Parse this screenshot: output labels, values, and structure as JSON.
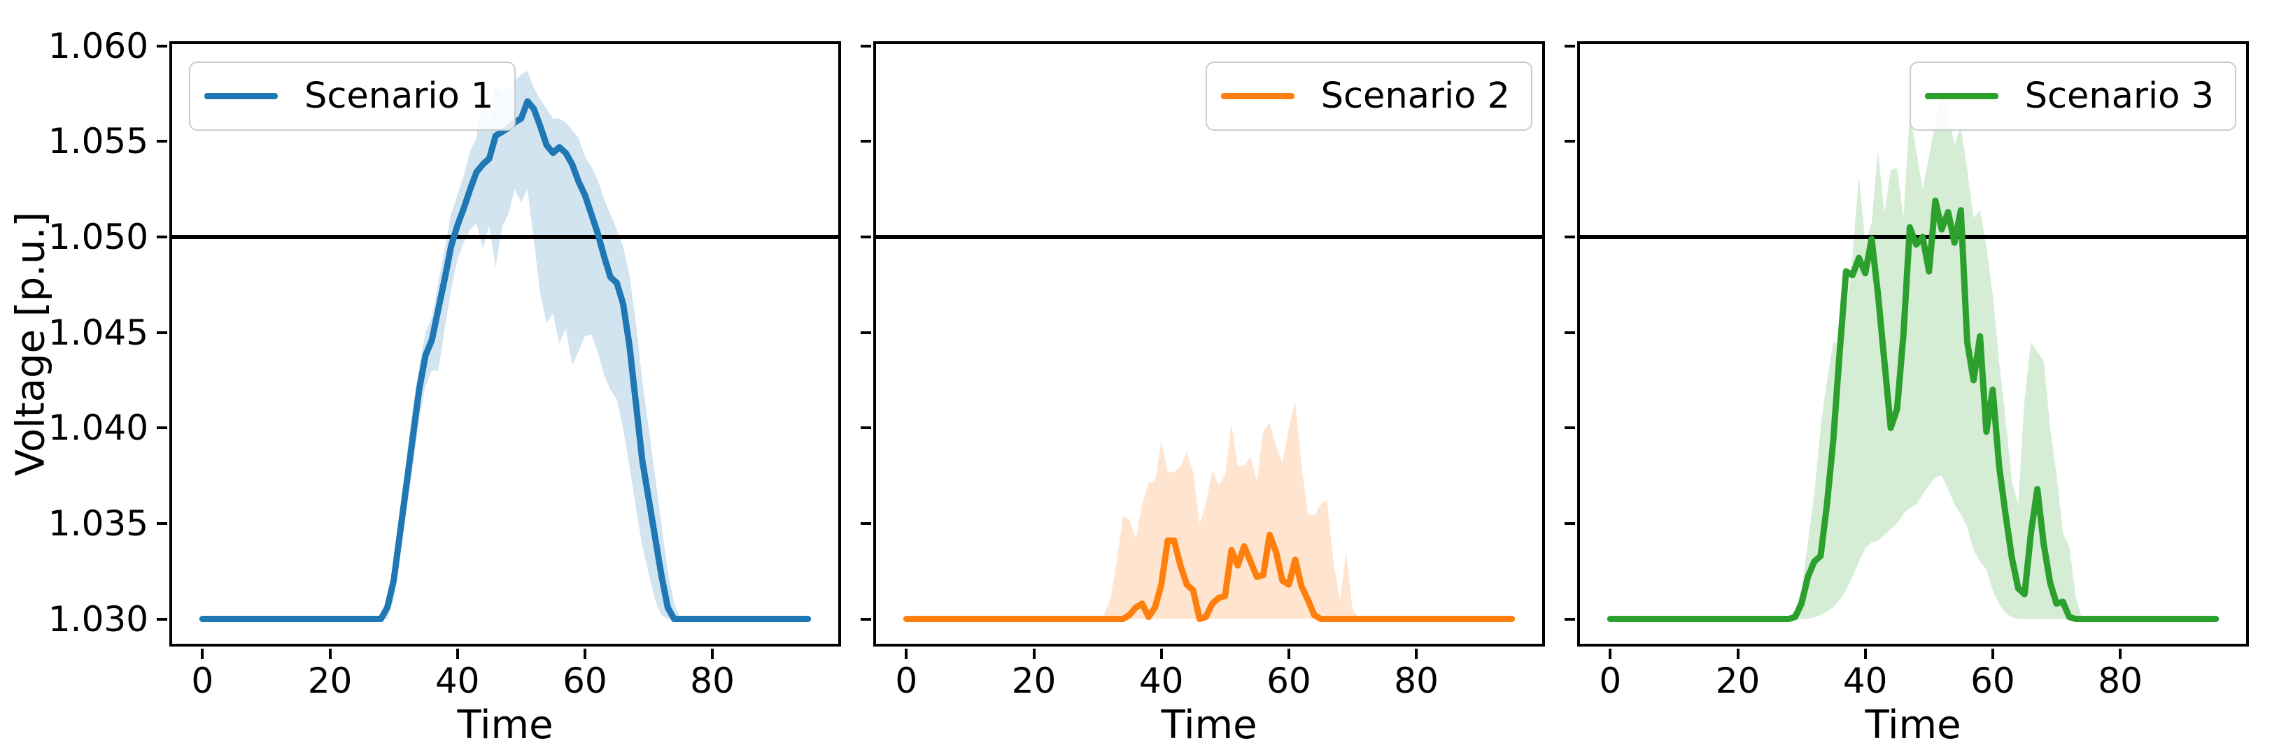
{
  "figure": {
    "ylabel": "Voltage [p.u.]",
    "xlabel": "Time",
    "threshold_value": 1.05,
    "background_color": "#ffffff",
    "spine_color": "#000000"
  },
  "chart_data": [
    {
      "type": "line",
      "legend": {
        "label": "Scenario 1",
        "position": "upper-left"
      },
      "color": "#1f77b4",
      "band_alpha": 0.2,
      "xlabel": "Time",
      "xlim": [
        -4.75,
        99.75
      ],
      "ylim": [
        1.0287,
        1.0601
      ],
      "xticks": [
        0,
        20,
        40,
        60,
        80
      ],
      "yticks": [
        1.03,
        1.035,
        1.04,
        1.045,
        1.05,
        1.055,
        1.06
      ],
      "ytick_labels": [
        "1.030",
        "1.035",
        "1.040",
        "1.045",
        "1.050",
        "1.055",
        "1.060"
      ],
      "show_ytick_labels": true,
      "threshold": 1.05,
      "x_start": 0,
      "x_step": 1,
      "mean": [
        1.03,
        1.03,
        1.03,
        1.03,
        1.03,
        1.03,
        1.03,
        1.03,
        1.03,
        1.03,
        1.03,
        1.03,
        1.03,
        1.03,
        1.03,
        1.03,
        1.03,
        1.03,
        1.03,
        1.03,
        1.03,
        1.03,
        1.03,
        1.03,
        1.03,
        1.03,
        1.03,
        1.03,
        1.03,
        1.0306,
        1.032,
        1.0345,
        1.037,
        1.0395,
        1.042,
        1.0438,
        1.0446,
        1.0462,
        1.0478,
        1.0495,
        1.0506,
        1.0515,
        1.0525,
        1.0534,
        1.0538,
        1.0541,
        1.0553,
        1.0555,
        1.0557,
        1.056,
        1.0562,
        1.0571,
        1.0567,
        1.0558,
        1.0548,
        1.0544,
        1.0547,
        1.0544,
        1.0538,
        1.0529,
        1.0522,
        1.0512,
        1.0502,
        1.049,
        1.0479,
        1.0476,
        1.0465,
        1.0443,
        1.0413,
        1.0383,
        1.0363,
        1.0343,
        1.0323,
        1.0306,
        1.03,
        1.03,
        1.03,
        1.03,
        1.03,
        1.03,
        1.03,
        1.03,
        1.03,
        1.03,
        1.03,
        1.03,
        1.03,
        1.03,
        1.03,
        1.03,
        1.03,
        1.03,
        1.03,
        1.03,
        1.03,
        1.03
      ],
      "band_lower": [
        1.03,
        1.03,
        1.03,
        1.03,
        1.03,
        1.03,
        1.03,
        1.03,
        1.03,
        1.03,
        1.03,
        1.03,
        1.03,
        1.03,
        1.03,
        1.03,
        1.03,
        1.03,
        1.03,
        1.03,
        1.03,
        1.03,
        1.03,
        1.03,
        1.03,
        1.03,
        1.03,
        1.03,
        1.03,
        1.03,
        1.031,
        1.0332,
        1.0356,
        1.038,
        1.0404,
        1.0422,
        1.043,
        1.043,
        1.0452,
        1.0472,
        1.0488,
        1.0497,
        1.0504,
        1.0507,
        1.0494,
        1.0506,
        1.0484,
        1.0505,
        1.0512,
        1.0525,
        1.0518,
        1.0525,
        1.0498,
        1.047,
        1.0455,
        1.046,
        1.0444,
        1.0452,
        1.0433,
        1.044,
        1.0448,
        1.0449,
        1.044,
        1.0428,
        1.042,
        1.0415,
        1.04,
        1.038,
        1.0358,
        1.0338,
        1.0324,
        1.031,
        1.0302,
        1.03,
        1.03,
        1.03,
        1.03,
        1.03,
        1.03,
        1.03,
        1.03,
        1.03,
        1.03,
        1.03,
        1.03,
        1.03,
        1.03,
        1.03,
        1.03,
        1.03,
        1.03,
        1.03,
        1.03,
        1.03,
        1.03,
        1.03
      ],
      "band_upper": [
        1.03,
        1.03,
        1.03,
        1.03,
        1.03,
        1.03,
        1.03,
        1.03,
        1.03,
        1.03,
        1.03,
        1.03,
        1.03,
        1.03,
        1.03,
        1.03,
        1.03,
        1.03,
        1.03,
        1.03,
        1.03,
        1.03,
        1.03,
        1.03,
        1.03,
        1.03,
        1.03,
        1.03,
        1.03,
        1.031,
        1.033,
        1.0358,
        1.0384,
        1.041,
        1.0432,
        1.045,
        1.0458,
        1.0476,
        1.0494,
        1.0512,
        1.0522,
        1.0532,
        1.0545,
        1.0552,
        1.058,
        1.0562,
        1.058,
        1.0576,
        1.0578,
        1.0582,
        1.0585,
        1.0587,
        1.0578,
        1.0572,
        1.0567,
        1.0562,
        1.0562,
        1.056,
        1.0556,
        1.0552,
        1.0542,
        1.0537,
        1.053,
        1.052,
        1.0512,
        1.0504,
        1.0495,
        1.048,
        1.0455,
        1.0425,
        1.04,
        1.0375,
        1.035,
        1.0325,
        1.0308,
        1.03,
        1.03,
        1.03,
        1.03,
        1.03,
        1.03,
        1.03,
        1.03,
        1.03,
        1.03,
        1.03,
        1.03,
        1.03,
        1.03,
        1.03,
        1.03,
        1.03,
        1.03,
        1.03,
        1.03,
        1.03
      ]
    },
    {
      "type": "line",
      "legend": {
        "label": "Scenario 2",
        "position": "upper-right"
      },
      "color": "#ff7f0e",
      "band_alpha": 0.2,
      "xlabel": "Time",
      "xlim": [
        -4.75,
        99.75
      ],
      "ylim": [
        1.0287,
        1.0601
      ],
      "xticks": [
        0,
        20,
        40,
        60,
        80
      ],
      "yticks": [
        1.03,
        1.035,
        1.04,
        1.045,
        1.05,
        1.055,
        1.06
      ],
      "ytick_labels": [
        "1.030",
        "1.035",
        "1.040",
        "1.045",
        "1.050",
        "1.055",
        "1.060"
      ],
      "show_ytick_labels": false,
      "threshold": 1.05,
      "x_start": 0,
      "x_step": 1,
      "mean": [
        1.03,
        1.03,
        1.03,
        1.03,
        1.03,
        1.03,
        1.03,
        1.03,
        1.03,
        1.03,
        1.03,
        1.03,
        1.03,
        1.03,
        1.03,
        1.03,
        1.03,
        1.03,
        1.03,
        1.03,
        1.03,
        1.03,
        1.03,
        1.03,
        1.03,
        1.03,
        1.03,
        1.03,
        1.03,
        1.03,
        1.03,
        1.03,
        1.03,
        1.03,
        1.03,
        1.0302,
        1.0306,
        1.0308,
        1.0301,
        1.0306,
        1.0318,
        1.0341,
        1.0341,
        1.0328,
        1.0318,
        1.0315,
        1.03,
        1.0301,
        1.0308,
        1.0311,
        1.0312,
        1.0336,
        1.0328,
        1.0338,
        1.033,
        1.0322,
        1.0323,
        1.0344,
        1.0335,
        1.032,
        1.0318,
        1.0331,
        1.0317,
        1.031,
        1.0302,
        1.03,
        1.03,
        1.03,
        1.03,
        1.03,
        1.03,
        1.03,
        1.03,
        1.03,
        1.03,
        1.03,
        1.03,
        1.03,
        1.03,
        1.03,
        1.03,
        1.03,
        1.03,
        1.03,
        1.03,
        1.03,
        1.03,
        1.03,
        1.03,
        1.03,
        1.03,
        1.03,
        1.03,
        1.03,
        1.03,
        1.03
      ],
      "band_lower": [
        1.03,
        1.03,
        1.03,
        1.03,
        1.03,
        1.03,
        1.03,
        1.03,
        1.03,
        1.03,
        1.03,
        1.03,
        1.03,
        1.03,
        1.03,
        1.03,
        1.03,
        1.03,
        1.03,
        1.03,
        1.03,
        1.03,
        1.03,
        1.03,
        1.03,
        1.03,
        1.03,
        1.03,
        1.03,
        1.03,
        1.03,
        1.03,
        1.03,
        1.03,
        1.03,
        1.03,
        1.03,
        1.03,
        1.03,
        1.03,
        1.03,
        1.03,
        1.03,
        1.03,
        1.03,
        1.03,
        1.03,
        1.03,
        1.03,
        1.03,
        1.03,
        1.03,
        1.03,
        1.03,
        1.03,
        1.03,
        1.03,
        1.03,
        1.03,
        1.03,
        1.03,
        1.03,
        1.03,
        1.03,
        1.03,
        1.03,
        1.03,
        1.03,
        1.03,
        1.03,
        1.03,
        1.03,
        1.03,
        1.03,
        1.03,
        1.03,
        1.03,
        1.03,
        1.03,
        1.03,
        1.03,
        1.03,
        1.03,
        1.03,
        1.03,
        1.03,
        1.03,
        1.03,
        1.03,
        1.03,
        1.03,
        1.03,
        1.03,
        1.03,
        1.03,
        1.03
      ],
      "band_upper": [
        1.03,
        1.03,
        1.03,
        1.03,
        1.03,
        1.03,
        1.03,
        1.03,
        1.03,
        1.03,
        1.03,
        1.03,
        1.03,
        1.03,
        1.03,
        1.03,
        1.03,
        1.03,
        1.03,
        1.03,
        1.03,
        1.03,
        1.03,
        1.03,
        1.03,
        1.03,
        1.03,
        1.03,
        1.03,
        1.03,
        1.03,
        1.0302,
        1.031,
        1.033,
        1.0354,
        1.0352,
        1.0342,
        1.036,
        1.0371,
        1.0372,
        1.0393,
        1.0377,
        1.0377,
        1.038,
        1.0387,
        1.0377,
        1.035,
        1.036,
        1.0378,
        1.037,
        1.0375,
        1.0402,
        1.038,
        1.038,
        1.0385,
        1.0372,
        1.0398,
        1.0403,
        1.039,
        1.0382,
        1.04,
        1.0414,
        1.038,
        1.0355,
        1.0354,
        1.036,
        1.0362,
        1.033,
        1.031,
        1.0335,
        1.0305,
        1.03,
        1.03,
        1.03,
        1.03,
        1.03,
        1.03,
        1.03,
        1.03,
        1.03,
        1.03,
        1.03,
        1.03,
        1.03,
        1.03,
        1.03,
        1.03,
        1.03,
        1.03,
        1.03,
        1.03,
        1.03,
        1.03,
        1.03,
        1.03,
        1.03
      ]
    },
    {
      "type": "line",
      "legend": {
        "label": "Scenario 3",
        "position": "upper-right"
      },
      "color": "#2ca02c",
      "band_alpha": 0.2,
      "xlabel": "Time",
      "xlim": [
        -4.75,
        99.75
      ],
      "ylim": [
        1.0287,
        1.0601
      ],
      "xticks": [
        0,
        20,
        40,
        60,
        80
      ],
      "yticks": [
        1.03,
        1.035,
        1.04,
        1.045,
        1.05,
        1.055,
        1.06
      ],
      "ytick_labels": [
        "1.030",
        "1.035",
        "1.040",
        "1.045",
        "1.050",
        "1.055",
        "1.060"
      ],
      "show_ytick_labels": false,
      "threshold": 1.05,
      "x_start": 0,
      "x_step": 1,
      "mean": [
        1.03,
        1.03,
        1.03,
        1.03,
        1.03,
        1.03,
        1.03,
        1.03,
        1.03,
        1.03,
        1.03,
        1.03,
        1.03,
        1.03,
        1.03,
        1.03,
        1.03,
        1.03,
        1.03,
        1.03,
        1.03,
        1.03,
        1.03,
        1.03,
        1.03,
        1.03,
        1.03,
        1.03,
        1.03,
        1.0301,
        1.0308,
        1.0322,
        1.033,
        1.0333,
        1.036,
        1.0394,
        1.044,
        1.0482,
        1.048,
        1.0489,
        1.0481,
        1.0499,
        1.047,
        1.0435,
        1.04,
        1.041,
        1.0449,
        1.0505,
        1.0496,
        1.05,
        1.0482,
        1.0519,
        1.0504,
        1.0513,
        1.0497,
        1.0514,
        1.0445,
        1.0425,
        1.0448,
        1.0398,
        1.042,
        1.038,
        1.0355,
        1.0332,
        1.0316,
        1.0313,
        1.0345,
        1.0368,
        1.0339,
        1.0319,
        1.0308,
        1.0309,
        1.0301,
        1.03,
        1.03,
        1.03,
        1.03,
        1.03,
        1.03,
        1.03,
        1.03,
        1.03,
        1.03,
        1.03,
        1.03,
        1.03,
        1.03,
        1.03,
        1.03,
        1.03,
        1.03,
        1.03,
        1.03,
        1.03,
        1.03,
        1.03
      ],
      "band_lower": [
        1.03,
        1.03,
        1.03,
        1.03,
        1.03,
        1.03,
        1.03,
        1.03,
        1.03,
        1.03,
        1.03,
        1.03,
        1.03,
        1.03,
        1.03,
        1.03,
        1.03,
        1.03,
        1.03,
        1.03,
        1.03,
        1.03,
        1.03,
        1.03,
        1.03,
        1.03,
        1.03,
        1.03,
        1.03,
        1.03,
        1.03,
        1.03,
        1.0301,
        1.0302,
        1.0304,
        1.0306,
        1.031,
        1.0315,
        1.0322,
        1.033,
        1.0337,
        1.034,
        1.0341,
        1.0344,
        1.0347,
        1.035,
        1.0355,
        1.0358,
        1.036,
        1.0365,
        1.037,
        1.0374,
        1.0375,
        1.0368,
        1.036,
        1.0355,
        1.0348,
        1.0336,
        1.033,
        1.0326,
        1.0315,
        1.0308,
        1.0303,
        1.0301,
        1.03,
        1.03,
        1.03,
        1.03,
        1.03,
        1.03,
        1.03,
        1.03,
        1.03,
        1.03,
        1.03,
        1.03,
        1.03,
        1.03,
        1.03,
        1.03,
        1.03,
        1.03,
        1.03,
        1.03,
        1.03,
        1.03,
        1.03,
        1.03,
        1.03,
        1.03,
        1.03,
        1.03,
        1.03,
        1.03,
        1.03,
        1.03
      ],
      "band_upper": [
        1.03,
        1.03,
        1.03,
        1.03,
        1.03,
        1.03,
        1.03,
        1.03,
        1.03,
        1.03,
        1.03,
        1.03,
        1.03,
        1.03,
        1.03,
        1.03,
        1.03,
        1.03,
        1.03,
        1.03,
        1.03,
        1.03,
        1.03,
        1.03,
        1.03,
        1.03,
        1.03,
        1.03,
        1.03,
        1.0305,
        1.0315,
        1.034,
        1.0365,
        1.04,
        1.0425,
        1.0445,
        1.0444,
        1.046,
        1.049,
        1.0532,
        1.0497,
        1.0507,
        1.0545,
        1.0512,
        1.0535,
        1.0536,
        1.051,
        1.0565,
        1.0545,
        1.0525,
        1.0542,
        1.056,
        1.0578,
        1.0565,
        1.0548,
        1.0558,
        1.0535,
        1.051,
        1.0514,
        1.0495,
        1.047,
        1.0435,
        1.0405,
        1.0372,
        1.036,
        1.0415,
        1.0445,
        1.044,
        1.0435,
        1.04,
        1.0376,
        1.0345,
        1.0338,
        1.0312,
        1.03,
        1.03,
        1.03,
        1.03,
        1.03,
        1.03,
        1.03,
        1.03,
        1.03,
        1.03,
        1.03,
        1.03,
        1.03,
        1.03,
        1.03,
        1.03,
        1.03,
        1.03,
        1.03,
        1.03,
        1.03,
        1.03
      ]
    }
  ]
}
